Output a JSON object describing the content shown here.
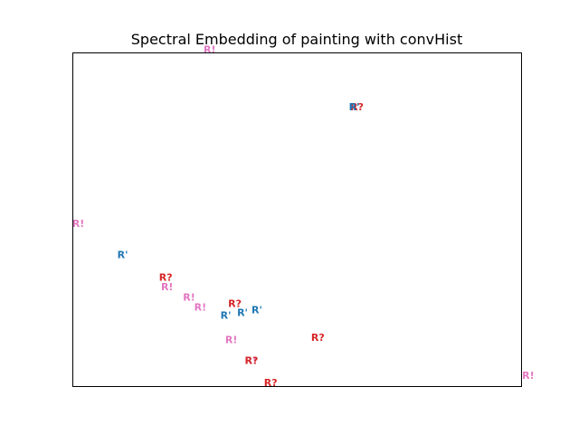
{
  "chart_data": {
    "type": "scatter",
    "title": "Spectral Embedding of painting with convHist",
    "xlabel": "",
    "ylabel": "",
    "axes_ticks": "none",
    "grid": false,
    "xlim": [
      0,
      1
    ],
    "ylim": [
      0,
      1
    ],
    "colors": {
      "R'": "#1f77b4",
      "R?": "#d62728",
      "R!": "#e377c2"
    },
    "points": [
      {
        "label": "R!",
        "x": 0.305,
        "y": 1.01
      },
      {
        "label": "R?",
        "x": 0.633,
        "y": 0.837
      },
      {
        "label": "R'",
        "x": 0.627,
        "y": 0.837
      },
      {
        "label": "R!",
        "x": 0.012,
        "y": 0.488
      },
      {
        "label": "R'",
        "x": 0.111,
        "y": 0.394
      },
      {
        "label": "R?",
        "x": 0.207,
        "y": 0.327
      },
      {
        "label": "R!",
        "x": 0.21,
        "y": 0.298
      },
      {
        "label": "R!",
        "x": 0.259,
        "y": 0.267
      },
      {
        "label": "R!",
        "x": 0.284,
        "y": 0.237
      },
      {
        "label": "R?",
        "x": 0.361,
        "y": 0.248
      },
      {
        "label": "R'",
        "x": 0.41,
        "y": 0.229
      },
      {
        "label": "R'",
        "x": 0.378,
        "y": 0.221
      },
      {
        "label": "R'",
        "x": 0.341,
        "y": 0.213
      },
      {
        "label": "R?",
        "x": 0.546,
        "y": 0.147
      },
      {
        "label": "R!",
        "x": 0.353,
        "y": 0.139
      },
      {
        "label": "R!",
        "x": 0.397,
        "y": 0.077
      },
      {
        "label": "R?",
        "x": 0.398,
        "y": 0.077
      },
      {
        "label": "R?",
        "x": 0.441,
        "y": 0.011
      },
      {
        "label": "R!",
        "x": 1.015,
        "y": 0.033
      }
    ]
  }
}
